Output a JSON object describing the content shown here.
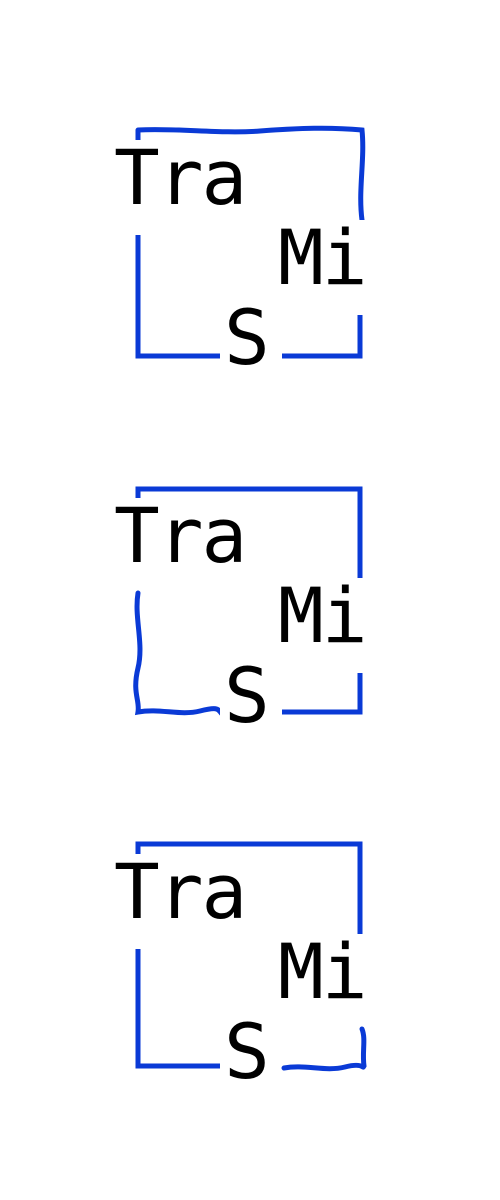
{
  "brand_color": "#0a3ad6",
  "logos": [
    {
      "line1": "Tra",
      "line2": "Mi",
      "line3": "S",
      "variant": "wavy-top-and-right"
    },
    {
      "line1": "Tra",
      "line2": "Mi",
      "line3": "S",
      "variant": "wavy-left-and-bottom"
    },
    {
      "line1": "Tra",
      "line2": "Mi",
      "line3": "S",
      "variant": "wavy-bottom-right"
    }
  ]
}
